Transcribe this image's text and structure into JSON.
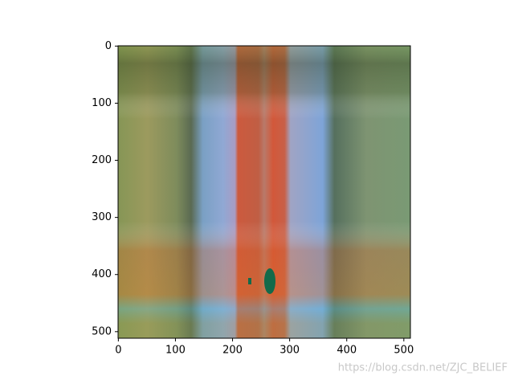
{
  "chart_data": {
    "type": "image",
    "xlim": [
      -0.5,
      511.5
    ],
    "ylim": [
      511.5,
      -0.5
    ],
    "xticks": [
      0,
      100,
      200,
      300,
      400,
      500
    ],
    "yticks": [
      0,
      100,
      200,
      300,
      400,
      500
    ],
    "grid": false
  },
  "watermark": "https://blog.csdn.net/ZJC_BELIEF"
}
